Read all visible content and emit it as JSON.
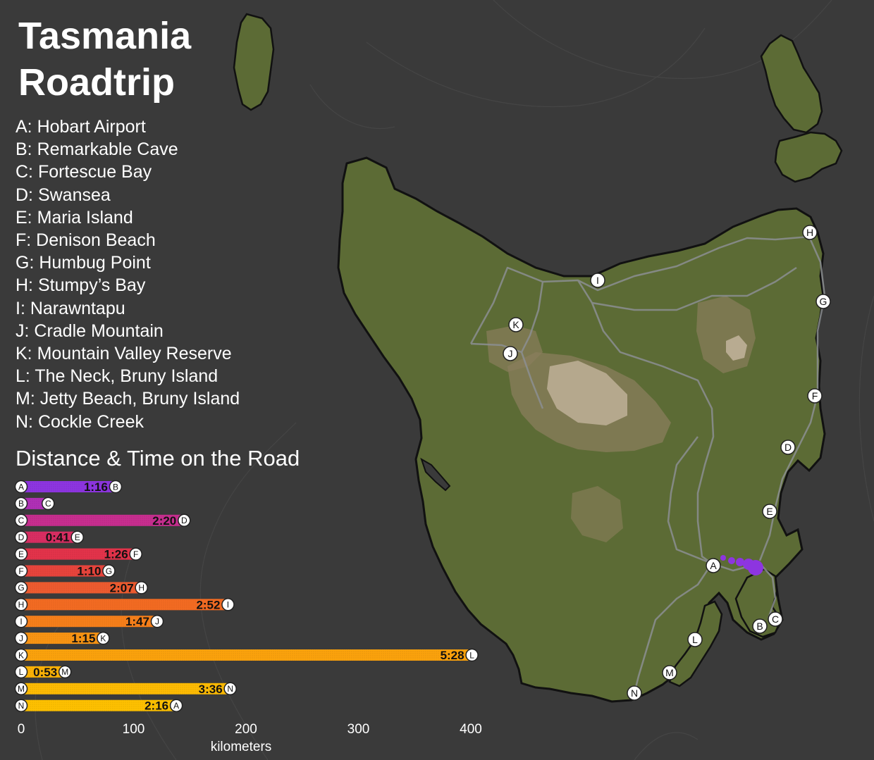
{
  "title_line1": "Tasmania",
  "title_line2": "Roadtrip",
  "stops": [
    {
      "letter": "A",
      "name": "Hobart Airport"
    },
    {
      "letter": "B",
      "name": "Remarkable Cave"
    },
    {
      "letter": "C",
      "name": "Fortescue Bay"
    },
    {
      "letter": "D",
      "name": "Swansea"
    },
    {
      "letter": "E",
      "name": "Maria Island"
    },
    {
      "letter": "F",
      "name": "Denison Beach"
    },
    {
      "letter": "G",
      "name": "Humbug Point"
    },
    {
      "letter": "H",
      "name": "Stumpy’s Bay"
    },
    {
      "letter": "I",
      "name": "Narawntapu"
    },
    {
      "letter": "J",
      "name": "Cradle Mountain"
    },
    {
      "letter": "K",
      "name": "Mountain Valley Reserve"
    },
    {
      "letter": "L",
      "name": "The Neck, Bruny Island"
    },
    {
      "letter": "M",
      "name": "Jetty Beach, Bruny Island"
    },
    {
      "letter": "N",
      "name": "Cockle Creek"
    }
  ],
  "stop_labels": [
    {
      "text": "A: Hobart Airport"
    },
    {
      "text": "B: Remarkable Cave"
    },
    {
      "text": "C: Fortescue Bay"
    },
    {
      "text": "D: Swansea"
    },
    {
      "text": "E: Maria Island"
    },
    {
      "text": "F: Denison Beach"
    },
    {
      "text": "G: Humbug Point"
    },
    {
      "text": "H: Stumpy’s Bay"
    },
    {
      "text": "I: Narawntapu"
    },
    {
      "text": "J: Cradle Mountain"
    },
    {
      "text": "K: Mountain Valley Reserve"
    },
    {
      "text": "L: The Neck, Bruny Island"
    },
    {
      "text": "M: Jetty Beach, Bruny Island"
    },
    {
      "text": "N: Cockle Creek"
    }
  ],
  "chart_title": "Distance & Time on the Road",
  "chart_data": {
    "type": "bar",
    "orientation": "horizontal",
    "title": "Distance & Time on the Road",
    "xlabel": "kilometers",
    "xlim": [
      0,
      420
    ],
    "xticks": [
      0,
      100,
      200,
      300,
      400
    ],
    "legs": [
      {
        "from": "A",
        "to": "B",
        "km": 84,
        "time": "1:16",
        "color": "#8d35e0"
      },
      {
        "from": "B",
        "to": "C",
        "km": 24,
        "time": "",
        "color": "#b02fb6"
      },
      {
        "from": "C",
        "to": "D",
        "km": 145,
        "time": "2:20",
        "color": "#c72e8f"
      },
      {
        "from": "D",
        "to": "E",
        "km": 50,
        "time": "0:41",
        "color": "#d92d62"
      },
      {
        "from": "E",
        "to": "F",
        "km": 102,
        "time": "1:26",
        "color": "#e3334a"
      },
      {
        "from": "F",
        "to": "G",
        "km": 78,
        "time": "1:10",
        "color": "#e8443c"
      },
      {
        "from": "G",
        "to": "H",
        "km": 107,
        "time": "2:07",
        "color": "#ee5b2f"
      },
      {
        "from": "H",
        "to": "I",
        "km": 184,
        "time": "2:52",
        "color": "#f36b22"
      },
      {
        "from": "I",
        "to": "J",
        "km": 121,
        "time": "1:47",
        "color": "#f67f1a"
      },
      {
        "from": "J",
        "to": "K",
        "km": 73,
        "time": "1:15",
        "color": "#f89413"
      },
      {
        "from": "K",
        "to": "L",
        "km": 401,
        "time": "5:28",
        "color": "#fba20c"
      },
      {
        "from": "L",
        "to": "M",
        "km": 39,
        "time": "0:53",
        "color": "#fcb206"
      },
      {
        "from": "M",
        "to": "N",
        "km": 186,
        "time": "3:36",
        "color": "#fdbb03"
      },
      {
        "from": "N",
        "to": "A",
        "km": 138,
        "time": "2:16",
        "color": "#fec000"
      }
    ]
  },
  "map": {
    "land_color": "#5c6b35",
    "highland_color": "#8a7e5c",
    "peak_color": "#c3b49c",
    "road_color": "#8c8f92",
    "route_color": "#8d35e0",
    "ocean_color": "#3a3a3a",
    "markers": [
      "A",
      "B",
      "C",
      "D",
      "E",
      "F",
      "G",
      "H",
      "I",
      "J",
      "K",
      "L",
      "M",
      "N"
    ]
  }
}
